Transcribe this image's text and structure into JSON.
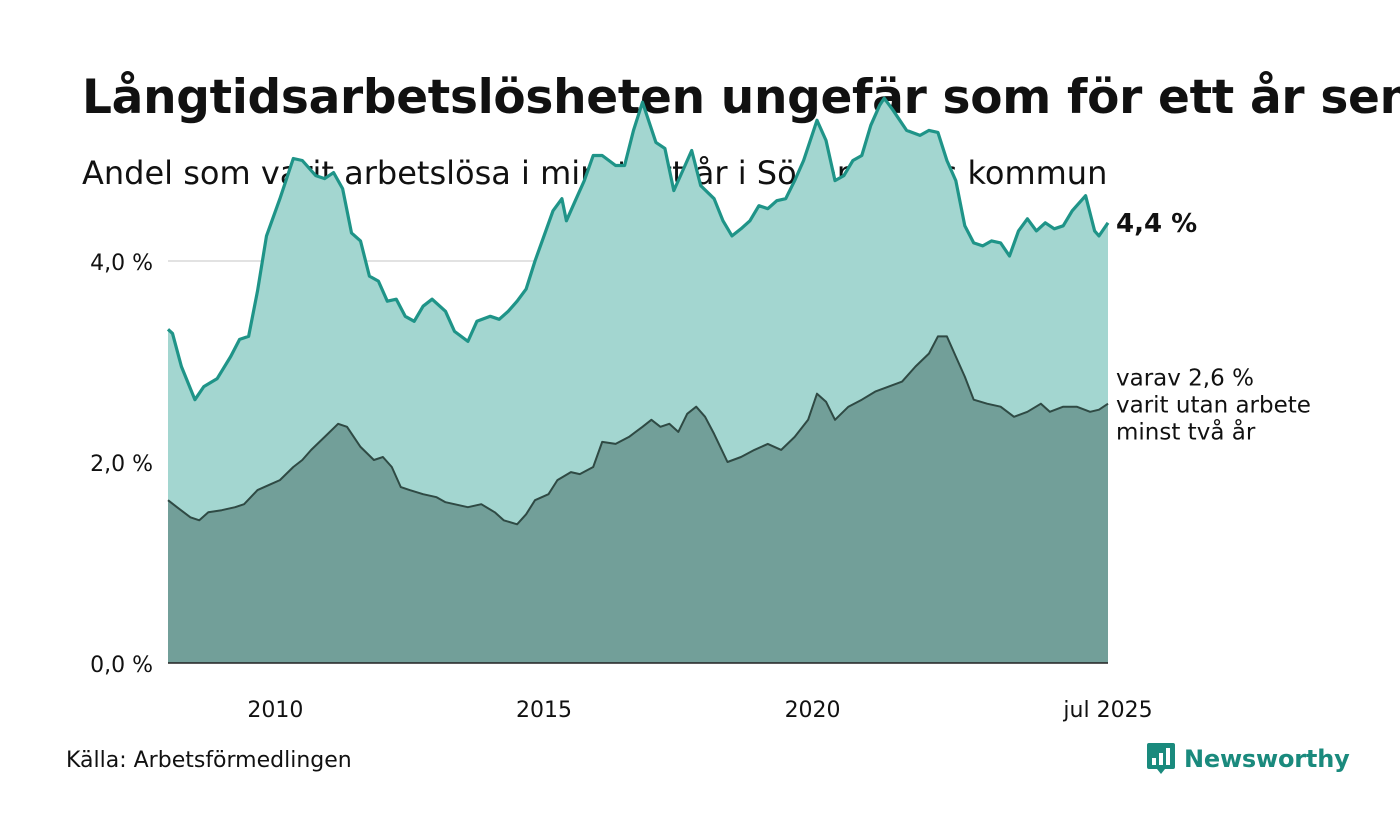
{
  "title": "Långtidsarbetslösheten ungefär som för ett år sen",
  "subtitle": "Andel som varit arbetslösa i minst ett år i Söderhamns kommun",
  "source": "Källa: Arbetsförmedlingen",
  "brand": {
    "name": "Newsworthy",
    "icon": "bar-chart-speech-bubble-icon",
    "color": "#1a8a7d"
  },
  "chart_data": {
    "type": "area",
    "x_start": "2008-01",
    "x_end": "2025-07",
    "x_step": "month",
    "ylim": [
      0,
      6
    ],
    "yticks": [
      "0,0 %",
      "2,0 %",
      "4,0 %"
    ],
    "ytick_values": [
      0,
      2,
      4
    ],
    "xtick_labels": [
      "2010",
      "2015",
      "2020",
      "jul 2025"
    ],
    "xtick_dates": [
      "2010-01",
      "2015-01",
      "2020-01",
      "2025-07"
    ],
    "grid": true,
    "series": [
      {
        "key": "total",
        "end_label": "4,4 %",
        "line_color": "#1f9488",
        "fill_color": "#a3d6d0",
        "keypoints": [
          [
            "2008-01",
            3.32
          ],
          [
            "2008-02",
            3.28
          ],
          [
            "2008-04",
            2.95
          ],
          [
            "2008-07",
            2.62
          ],
          [
            "2008-09",
            2.75
          ],
          [
            "2008-12",
            2.83
          ],
          [
            "2009-03",
            3.05
          ],
          [
            "2009-05",
            3.22
          ],
          [
            "2009-07",
            3.25
          ],
          [
            "2009-09",
            3.7
          ],
          [
            "2009-11",
            4.25
          ],
          [
            "2010-02",
            4.62
          ],
          [
            "2010-05",
            5.02
          ],
          [
            "2010-07",
            5.0
          ],
          [
            "2010-10",
            4.85
          ],
          [
            "2010-12",
            4.82
          ],
          [
            "2011-02",
            4.88
          ],
          [
            "2011-04",
            4.72
          ],
          [
            "2011-06",
            4.28
          ],
          [
            "2011-08",
            4.2
          ],
          [
            "2011-10",
            3.85
          ],
          [
            "2011-12",
            3.8
          ],
          [
            "2012-02",
            3.6
          ],
          [
            "2012-04",
            3.62
          ],
          [
            "2012-06",
            3.45
          ],
          [
            "2012-08",
            3.4
          ],
          [
            "2012-10",
            3.55
          ],
          [
            "2012-12",
            3.62
          ],
          [
            "2013-03",
            3.5
          ],
          [
            "2013-05",
            3.3
          ],
          [
            "2013-08",
            3.2
          ],
          [
            "2013-10",
            3.4
          ],
          [
            "2014-01",
            3.45
          ],
          [
            "2014-03",
            3.42
          ],
          [
            "2014-05",
            3.5
          ],
          [
            "2014-07",
            3.6
          ],
          [
            "2014-09",
            3.72
          ],
          [
            "2014-11",
            4.0
          ],
          [
            "2015-01",
            4.25
          ],
          [
            "2015-03",
            4.5
          ],
          [
            "2015-05",
            4.62
          ],
          [
            "2015-06",
            4.4
          ],
          [
            "2015-08",
            4.6
          ],
          [
            "2015-10",
            4.8
          ],
          [
            "2015-12",
            5.05
          ],
          [
            "2016-02",
            5.05
          ],
          [
            "2016-05",
            4.95
          ],
          [
            "2016-07",
            4.95
          ],
          [
            "2016-09",
            5.3
          ],
          [
            "2016-11",
            5.58
          ],
          [
            "2017-02",
            5.18
          ],
          [
            "2017-04",
            5.12
          ],
          [
            "2017-06",
            4.7
          ],
          [
            "2017-08",
            4.9
          ],
          [
            "2017-10",
            5.1
          ],
          [
            "2017-12",
            4.75
          ],
          [
            "2018-03",
            4.62
          ],
          [
            "2018-05",
            4.4
          ],
          [
            "2018-07",
            4.25
          ],
          [
            "2018-09",
            4.32
          ],
          [
            "2018-11",
            4.4
          ],
          [
            "2019-01",
            4.55
          ],
          [
            "2019-03",
            4.52
          ],
          [
            "2019-05",
            4.6
          ],
          [
            "2019-07",
            4.62
          ],
          [
            "2019-09",
            4.8
          ],
          [
            "2019-11",
            5.0
          ],
          [
            "2020-02",
            5.4
          ],
          [
            "2020-04",
            5.2
          ],
          [
            "2020-06",
            4.8
          ],
          [
            "2020-08",
            4.85
          ],
          [
            "2020-10",
            5.0
          ],
          [
            "2020-12",
            5.05
          ],
          [
            "2021-02",
            5.35
          ],
          [
            "2021-04",
            5.55
          ],
          [
            "2021-05",
            5.62
          ],
          [
            "2021-07",
            5.5
          ],
          [
            "2021-10",
            5.3
          ],
          [
            "2022-01",
            5.25
          ],
          [
            "2022-03",
            5.3
          ],
          [
            "2022-05",
            5.28
          ],
          [
            "2022-07",
            5.0
          ],
          [
            "2022-09",
            4.8
          ],
          [
            "2022-11",
            4.35
          ],
          [
            "2023-01",
            4.18
          ],
          [
            "2023-03",
            4.15
          ],
          [
            "2023-05",
            4.2
          ],
          [
            "2023-07",
            4.18
          ],
          [
            "2023-09",
            4.05
          ],
          [
            "2023-11",
            4.3
          ],
          [
            "2024-01",
            4.42
          ],
          [
            "2024-03",
            4.3
          ],
          [
            "2024-05",
            4.38
          ],
          [
            "2024-07",
            4.32
          ],
          [
            "2024-09",
            4.35
          ],
          [
            "2024-11",
            4.5
          ],
          [
            "2025-02",
            4.65
          ],
          [
            "2025-04",
            4.3
          ],
          [
            "2025-05",
            4.25
          ],
          [
            "2025-07",
            4.38
          ]
        ]
      },
      {
        "key": "over_two_years",
        "end_label_lines": [
          "varav 2,6 %",
          "varit utan arbete",
          "minst två år"
        ],
        "line_color": "#2f4a44",
        "fill_color": "#729f99",
        "keypoints": [
          [
            "2008-01",
            1.62
          ],
          [
            "2008-03",
            1.55
          ],
          [
            "2008-06",
            1.45
          ],
          [
            "2008-08",
            1.42
          ],
          [
            "2008-10",
            1.5
          ],
          [
            "2009-01",
            1.52
          ],
          [
            "2009-04",
            1.55
          ],
          [
            "2009-06",
            1.58
          ],
          [
            "2009-09",
            1.72
          ],
          [
            "2009-12",
            1.78
          ],
          [
            "2010-02",
            1.82
          ],
          [
            "2010-05",
            1.95
          ],
          [
            "2010-07",
            2.02
          ],
          [
            "2010-09",
            2.12
          ],
          [
            "2010-12",
            2.25
          ],
          [
            "2011-03",
            2.38
          ],
          [
            "2011-05",
            2.35
          ],
          [
            "2011-08",
            2.15
          ],
          [
            "2011-11",
            2.02
          ],
          [
            "2012-01",
            2.05
          ],
          [
            "2012-03",
            1.95
          ],
          [
            "2012-05",
            1.75
          ],
          [
            "2012-07",
            1.72
          ],
          [
            "2012-10",
            1.68
          ],
          [
            "2013-01",
            1.65
          ],
          [
            "2013-03",
            1.6
          ],
          [
            "2013-05",
            1.58
          ],
          [
            "2013-08",
            1.55
          ],
          [
            "2013-11",
            1.58
          ],
          [
            "2014-02",
            1.5
          ],
          [
            "2014-04",
            1.42
          ],
          [
            "2014-07",
            1.38
          ],
          [
            "2014-09",
            1.48
          ],
          [
            "2014-11",
            1.62
          ],
          [
            "2015-02",
            1.68
          ],
          [
            "2015-04",
            1.82
          ],
          [
            "2015-07",
            1.9
          ],
          [
            "2015-09",
            1.88
          ],
          [
            "2015-12",
            1.95
          ],
          [
            "2016-02",
            2.2
          ],
          [
            "2016-05",
            2.18
          ],
          [
            "2016-08",
            2.25
          ],
          [
            "2016-11",
            2.35
          ],
          [
            "2017-01",
            2.42
          ],
          [
            "2017-03",
            2.35
          ],
          [
            "2017-05",
            2.38
          ],
          [
            "2017-07",
            2.3
          ],
          [
            "2017-09",
            2.48
          ],
          [
            "2017-11",
            2.55
          ],
          [
            "2018-01",
            2.45
          ],
          [
            "2018-03",
            2.28
          ],
          [
            "2018-06",
            2.0
          ],
          [
            "2018-09",
            2.05
          ],
          [
            "2018-12",
            2.12
          ],
          [
            "2019-03",
            2.18
          ],
          [
            "2019-06",
            2.12
          ],
          [
            "2019-09",
            2.25
          ],
          [
            "2019-12",
            2.42
          ],
          [
            "2020-02",
            2.68
          ],
          [
            "2020-04",
            2.6
          ],
          [
            "2020-06",
            2.42
          ],
          [
            "2020-09",
            2.55
          ],
          [
            "2020-12",
            2.62
          ],
          [
            "2021-03",
            2.7
          ],
          [
            "2021-06",
            2.75
          ],
          [
            "2021-09",
            2.8
          ],
          [
            "2021-12",
            2.95
          ],
          [
            "2022-03",
            3.08
          ],
          [
            "2022-05",
            3.25
          ],
          [
            "2022-07",
            3.25
          ],
          [
            "2022-09",
            3.05
          ],
          [
            "2022-11",
            2.85
          ],
          [
            "2023-01",
            2.62
          ],
          [
            "2023-04",
            2.58
          ],
          [
            "2023-07",
            2.55
          ],
          [
            "2023-10",
            2.45
          ],
          [
            "2024-01",
            2.5
          ],
          [
            "2024-04",
            2.58
          ],
          [
            "2024-06",
            2.5
          ],
          [
            "2024-09",
            2.55
          ],
          [
            "2024-12",
            2.55
          ],
          [
            "2025-03",
            2.5
          ],
          [
            "2025-05",
            2.52
          ],
          [
            "2025-07",
            2.58
          ]
        ]
      }
    ]
  }
}
